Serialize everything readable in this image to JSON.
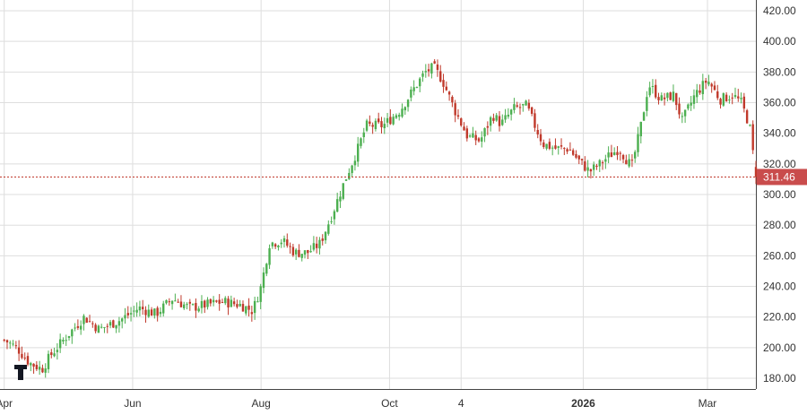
{
  "chart_data": {
    "type": "candlestick",
    "x_ticks": [
      {
        "label": "Apr",
        "t": 0,
        "bold": false
      },
      {
        "label": "Jun",
        "t": 61,
        "bold": false
      },
      {
        "label": "Aug",
        "t": 122,
        "bold": false
      },
      {
        "label": "Oct",
        "t": 183,
        "bold": false
      },
      {
        "label": "4",
        "t": 217,
        "bold": false
      },
      {
        "label": "2026",
        "t": 275,
        "bold": true
      },
      {
        "label": "Mar",
        "t": 334,
        "bold": false
      }
    ],
    "x_range": [
      -2,
      357
    ],
    "ylim": [
      173,
      420
    ],
    "y_ticks": [
      180,
      200,
      220,
      240,
      260,
      280,
      300,
      320,
      340,
      360,
      380,
      400,
      420
    ],
    "y_tick_labels": [
      "180.00",
      "200.00",
      "220.00",
      "240.00",
      "260.00",
      "280.00",
      "300.00",
      "320.00",
      "340.00",
      "360.00",
      "380.00",
      "400.00",
      "420.00"
    ],
    "last_price": 311.46,
    "last_price_label": "311.46",
    "grid": true,
    "colors": {
      "up": "#4caf50",
      "down": "#c0392b",
      "grid": "#dedede",
      "price_line": "#c0392b",
      "price_tag": "#c94c4c",
      "text": "#333333"
    },
    "waypoints": [
      [
        0,
        205
      ],
      [
        6,
        200
      ],
      [
        12,
        190
      ],
      [
        18,
        186
      ],
      [
        22,
        195
      ],
      [
        30,
        208
      ],
      [
        38,
        220
      ],
      [
        45,
        212
      ],
      [
        55,
        218
      ],
      [
        64,
        226
      ],
      [
        72,
        222
      ],
      [
        80,
        232
      ],
      [
        88,
        226
      ],
      [
        96,
        228
      ],
      [
        104,
        230
      ],
      [
        112,
        228
      ],
      [
        118,
        224
      ],
      [
        122,
        240
      ],
      [
        126,
        268
      ],
      [
        132,
        270
      ],
      [
        138,
        262
      ],
      [
        144,
        262
      ],
      [
        150,
        268
      ],
      [
        156,
        288
      ],
      [
        162,
        310
      ],
      [
        168,
        330
      ],
      [
        172,
        345
      ],
      [
        180,
        345
      ],
      [
        188,
        355
      ],
      [
        195,
        370
      ],
      [
        200,
        380
      ],
      [
        204,
        383
      ],
      [
        208,
        375
      ],
      [
        214,
        355
      ],
      [
        220,
        338
      ],
      [
        226,
        335
      ],
      [
        232,
        352
      ],
      [
        236,
        346
      ],
      [
        242,
        356
      ],
      [
        248,
        358
      ],
      [
        252,
        345
      ],
      [
        256,
        333
      ],
      [
        262,
        330
      ],
      [
        268,
        330
      ],
      [
        273,
        322
      ],
      [
        278,
        315
      ],
      [
        283,
        320
      ],
      [
        287,
        325
      ],
      [
        292,
        330
      ],
      [
        296,
        322
      ],
      [
        298,
        318
      ],
      [
        302,
        342
      ],
      [
        306,
        372
      ],
      [
        312,
        362
      ],
      [
        318,
        365
      ],
      [
        322,
        348
      ],
      [
        328,
        365
      ],
      [
        334,
        375
      ],
      [
        340,
        362
      ],
      [
        346,
        365
      ],
      [
        350,
        360
      ],
      [
        354,
        345
      ],
      [
        357,
        311.46
      ]
    ]
  }
}
